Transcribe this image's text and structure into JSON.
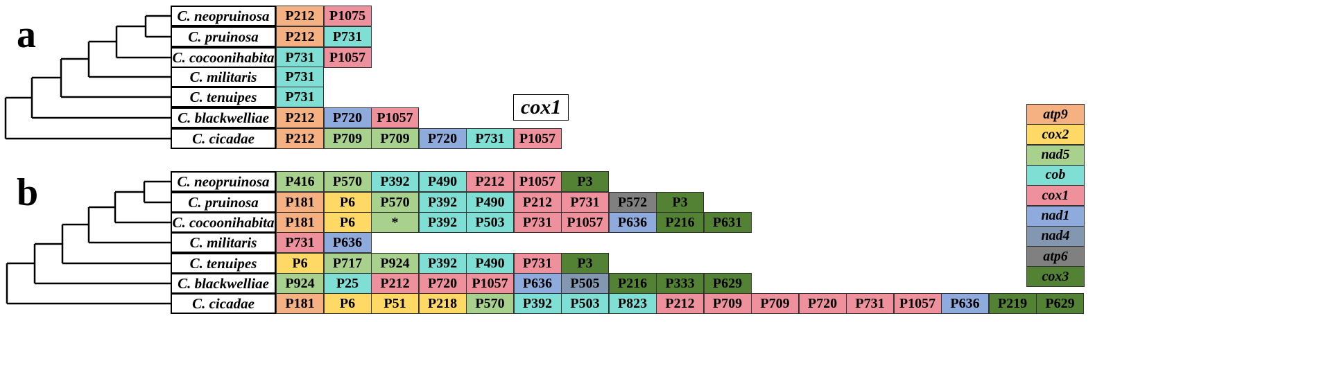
{
  "colors": {
    "atp9": "#f6b183",
    "cox2": "#fed966",
    "nad5": "#a9d18e",
    "cob": "#7fdfd4",
    "cox1": "#ee919d",
    "nad1": "#8faadc",
    "nad4": "#8497b0",
    "atp6": "#808080",
    "cox3": "#548235"
  },
  "panel_a": {
    "letter": "a",
    "gene_label": "cox1",
    "rows": [
      {
        "species": "C. neopruinosa",
        "cells": [
          {
            "label": "P212",
            "gene": "atp9"
          },
          {
            "label": "P1075",
            "gene": "cox1"
          }
        ]
      },
      {
        "species": "C. pruinosa",
        "cells": [
          {
            "label": "P212",
            "gene": "atp9"
          },
          {
            "label": "P731",
            "gene": "cob"
          }
        ]
      },
      {
        "species": "C. cocoonihabita",
        "cells": [
          {
            "label": "P731",
            "gene": "cob"
          },
          {
            "label": "P1057",
            "gene": "cox1"
          }
        ]
      },
      {
        "species": "C. militaris",
        "cells": [
          {
            "label": "P731",
            "gene": "cob"
          }
        ]
      },
      {
        "species": "C. tenuipes",
        "cells": [
          {
            "label": "P731",
            "gene": "cob"
          }
        ]
      },
      {
        "species": "C. blackwelliae",
        "cells": [
          {
            "label": "P212",
            "gene": "atp9"
          },
          {
            "label": "P720",
            "gene": "nad1"
          },
          {
            "label": "P1057",
            "gene": "cox1"
          }
        ]
      },
      {
        "species": "C. cicadae",
        "cells": [
          {
            "label": "P212",
            "gene": "atp9"
          },
          {
            "label": "P709",
            "gene": "nad5"
          },
          {
            "label": "P709",
            "gene": "nad5"
          },
          {
            "label": "P720",
            "gene": "nad1"
          },
          {
            "label": "P731",
            "gene": "cob"
          },
          {
            "label": "P1057",
            "gene": "cox1"
          }
        ]
      }
    ]
  },
  "panel_b": {
    "letter": "b",
    "rows": [
      {
        "species": "C. neopruinosa",
        "cells": [
          {
            "label": "P416",
            "gene": "nad5"
          },
          {
            "label": "P570",
            "gene": "nad5"
          },
          {
            "label": "P392",
            "gene": "cob"
          },
          {
            "label": "P490",
            "gene": "cob"
          },
          {
            "label": "P212",
            "gene": "cox1"
          },
          {
            "label": "P1057",
            "gene": "cox1"
          },
          {
            "label": "P3",
            "gene": "cox3"
          }
        ]
      },
      {
        "species": "C. pruinosa",
        "cells": [
          {
            "label": "P181",
            "gene": "atp9"
          },
          {
            "label": "P6",
            "gene": "cox2"
          },
          {
            "label": "P570",
            "gene": "nad5"
          },
          {
            "label": "P392",
            "gene": "cob"
          },
          {
            "label": "P490",
            "gene": "cob"
          },
          {
            "label": "P212",
            "gene": "cox1"
          },
          {
            "label": "P731",
            "gene": "cox1"
          },
          {
            "label": "P572",
            "gene": "atp6"
          },
          {
            "label": "P3",
            "gene": "cox3"
          }
        ]
      },
      {
        "species": "C. cocoonihabita",
        "cells": [
          {
            "label": "P181",
            "gene": "atp9"
          },
          {
            "label": "P6",
            "gene": "cox2"
          },
          {
            "label": "*",
            "gene": "nad5"
          },
          {
            "label": "P392",
            "gene": "cob"
          },
          {
            "label": "P503",
            "gene": "cob"
          },
          {
            "label": "P731",
            "gene": "cox1"
          },
          {
            "label": "P1057",
            "gene": "cox1"
          },
          {
            "label": "P636",
            "gene": "nad1"
          },
          {
            "label": "P216",
            "gene": "cox3"
          },
          {
            "label": "P631",
            "gene": "cox3"
          }
        ]
      },
      {
        "species": "C. militaris",
        "cells": [
          {
            "label": "P731",
            "gene": "cox1"
          },
          {
            "label": "P636",
            "gene": "nad1"
          }
        ]
      },
      {
        "species": "C. tenuipes",
        "cells": [
          {
            "label": "P6",
            "gene": "cox2"
          },
          {
            "label": "P717",
            "gene": "nad5"
          },
          {
            "label": "P924",
            "gene": "nad5"
          },
          {
            "label": "P392",
            "gene": "cob"
          },
          {
            "label": "P490",
            "gene": "cob"
          },
          {
            "label": "P731",
            "gene": "cox1"
          },
          {
            "label": "P3",
            "gene": "cox3"
          }
        ]
      },
      {
        "species": "C. blackwelliae",
        "cells": [
          {
            "label": "P924",
            "gene": "nad5"
          },
          {
            "label": "P25",
            "gene": "cob"
          },
          {
            "label": "P212",
            "gene": "cox1"
          },
          {
            "label": "P720",
            "gene": "cox1"
          },
          {
            "label": "P1057",
            "gene": "cox1"
          },
          {
            "label": "P636",
            "gene": "nad1"
          },
          {
            "label": "P505",
            "gene": "nad4"
          },
          {
            "label": "P216",
            "gene": "cox3"
          },
          {
            "label": "P333",
            "gene": "cox3"
          },
          {
            "label": "P629",
            "gene": "cox3"
          }
        ]
      },
      {
        "species": "C. cicadae",
        "cells": [
          {
            "label": "P181",
            "gene": "atp9"
          },
          {
            "label": "P6",
            "gene": "cox2"
          },
          {
            "label": "P51",
            "gene": "cox2"
          },
          {
            "label": "P218",
            "gene": "cox2"
          },
          {
            "label": "P570",
            "gene": "nad5"
          },
          {
            "label": "P392",
            "gene": "cob"
          },
          {
            "label": "P503",
            "gene": "cob"
          },
          {
            "label": "P823",
            "gene": "cob"
          },
          {
            "label": "P212",
            "gene": "cox1"
          },
          {
            "label": "P709",
            "gene": "cox1"
          },
          {
            "label": "P709",
            "gene": "cox1"
          },
          {
            "label": "P720",
            "gene": "cox1"
          },
          {
            "label": "P731",
            "gene": "cox1"
          },
          {
            "label": "P1057",
            "gene": "cox1"
          },
          {
            "label": "P636",
            "gene": "nad1"
          },
          {
            "label": "P219",
            "gene": "cox3"
          },
          {
            "label": "P629",
            "gene": "cox3"
          }
        ]
      }
    ]
  },
  "legend": [
    "atp9",
    "cox2",
    "nad5",
    "cob",
    "cox1",
    "nad1",
    "nad4",
    "atp6",
    "cox3"
  ]
}
